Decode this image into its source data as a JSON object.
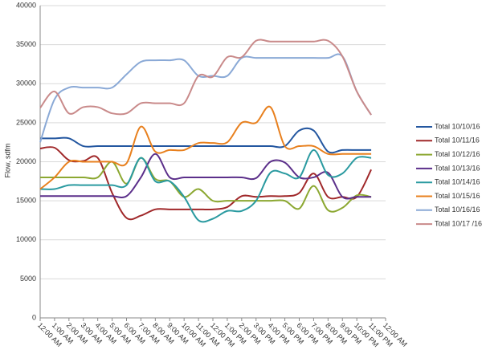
{
  "chart_data": {
    "type": "line",
    "y_label": "Flow, sdfm",
    "categories": [
      "12:00 AM",
      "1:00 AM",
      "2:00 AM",
      "3:00 AM",
      "4:00 AM",
      "5:00 AM",
      "6:00 AM",
      "7:00 AM",
      "8:00 AM",
      "9:00 AM",
      "10:00 AM",
      "11:00 AM",
      "12:00 PM",
      "1:00 PM",
      "2:00 PM",
      "3:00 PM",
      "4:00 PM",
      "5:00 PM",
      "6:00 PM",
      "7:00 PM",
      "8:00 PM",
      "9:00 PM",
      "10:00 PM",
      "11:00 PM",
      "12:00 AM"
    ],
    "ylim": [
      0,
      40000
    ],
    "yticks": [
      0,
      5000,
      10000,
      15000,
      20000,
      25000,
      30000,
      35000,
      40000
    ],
    "grid": true,
    "legend": "right",
    "series": [
      {
        "name": "Total 10/10/16",
        "color": "#2457a0",
        "values": [
          23000,
          23000,
          23000,
          22000,
          22000,
          22000,
          22000,
          22000,
          22000,
          22000,
          22000,
          22000,
          22000,
          22000,
          22000,
          22000,
          22000,
          22000,
          24000,
          24000,
          21300,
          21500,
          21500,
          21500,
          null
        ]
      },
      {
        "name": "Total 10/11/16",
        "color": "#a0282a",
        "values": [
          21700,
          21800,
          20200,
          20100,
          20500,
          16000,
          12800,
          13100,
          13900,
          13900,
          13900,
          13900,
          13900,
          14200,
          15600,
          15500,
          15600,
          15600,
          16000,
          18500,
          15500,
          15500,
          15500,
          19000,
          null
        ]
      },
      {
        "name": "Total 10/12/16",
        "color": "#8ca832",
        "values": [
          18000,
          18000,
          18000,
          18000,
          18000,
          20000,
          17200,
          20500,
          17800,
          17500,
          15500,
          16500,
          15000,
          15000,
          15000,
          15000,
          15000,
          15000,
          14000,
          16900,
          13800,
          14100,
          15700,
          15500,
          null
        ]
      },
      {
        "name": "Total 10/13/16",
        "color": "#5b2f8a",
        "values": [
          15600,
          15600,
          15600,
          15600,
          15600,
          15600,
          15600,
          18000,
          21000,
          18000,
          18000,
          18000,
          18000,
          18000,
          18000,
          17900,
          20000,
          19900,
          18000,
          18000,
          18600,
          15500,
          15500,
          15500,
          null
        ]
      },
      {
        "name": "Total 10/14/16",
        "color": "#2a9aa0",
        "values": [
          16500,
          16500,
          17000,
          17000,
          17000,
          17000,
          17000,
          20500,
          17500,
          17500,
          15500,
          12500,
          12700,
          13700,
          13700,
          15000,
          18600,
          18500,
          18000,
          21500,
          18300,
          18500,
          20500,
          20500,
          null
        ]
      },
      {
        "name": "Total 10/15/16",
        "color": "#e8801e",
        "values": [
          16500,
          18000,
          20000,
          20000,
          20000,
          20000,
          19800,
          24500,
          21300,
          21500,
          21500,
          22400,
          22400,
          22500,
          25000,
          25000,
          27000,
          22000,
          22000,
          22000,
          21000,
          21000,
          21000,
          21000,
          null
        ]
      },
      {
        "name": "Total 10/16/16",
        "color": "#8aa9d6",
        "values": [
          22500,
          28000,
          29500,
          29500,
          29500,
          29500,
          31200,
          32800,
          33000,
          33000,
          33000,
          31000,
          31000,
          31000,
          33300,
          33300,
          33300,
          33300,
          33300,
          33300,
          33300,
          33500,
          29000,
          26000,
          null
        ]
      },
      {
        "name": "Total 10/17 /16",
        "color": "#c98a8a",
        "values": [
          26900,
          29000,
          26200,
          27000,
          27000,
          26200,
          26200,
          27500,
          27500,
          27500,
          27500,
          31000,
          30900,
          33400,
          33400,
          35500,
          35400,
          35400,
          35400,
          35400,
          35500,
          33500,
          29000,
          26000,
          null
        ]
      }
    ]
  }
}
